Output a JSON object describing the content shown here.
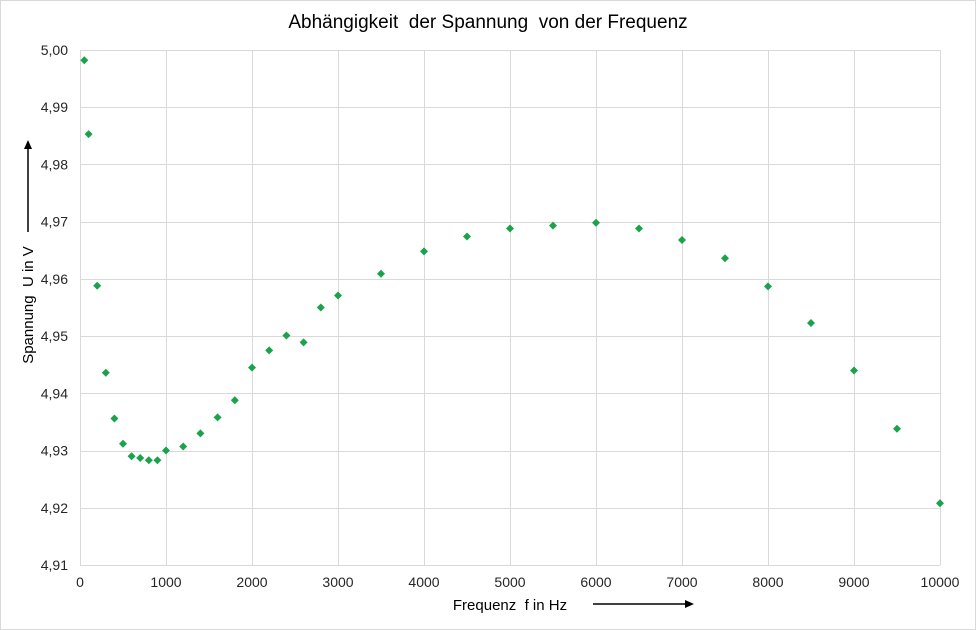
{
  "chart_data": {
    "type": "scatter",
    "title": "Abhängigkeit  der Spannung  von der Frequenz",
    "xlabel": "Frequenz  f in Hz",
    "ylabel": "Spannung  U in V",
    "xlim": [
      0,
      10000
    ],
    "ylim": [
      4.91,
      5.0
    ],
    "xticks": [
      0,
      1000,
      2000,
      3000,
      4000,
      5000,
      6000,
      7000,
      8000,
      9000,
      10000
    ],
    "xtick_labels": [
      "0",
      "1000",
      "2000",
      "3000",
      "4000",
      "5000",
      "6000",
      "7000",
      "8000",
      "9000",
      "10000"
    ],
    "yticks": [
      4.91,
      4.92,
      4.93,
      4.94,
      4.95,
      4.96,
      4.97,
      4.98,
      4.99,
      5.0
    ],
    "ytick_labels": [
      "4,91",
      "4,92",
      "4,93",
      "4,94",
      "4,95",
      "4,96",
      "4,97",
      "4,98",
      "4,99",
      "5,00"
    ],
    "grid": true,
    "legend": "none",
    "marker": "diamond",
    "color": "#1aa34a",
    "series": [
      {
        "x": [
          50,
          100,
          200,
          300,
          400,
          500,
          600,
          700,
          800,
          900,
          1000,
          1200,
          1400,
          1600,
          1800,
          2000,
          2200,
          2400,
          2600,
          2800,
          3000,
          3500,
          4000,
          4500,
          5000,
          5500,
          6000,
          6500,
          7000,
          7500,
          8000,
          8500,
          9000,
          9500,
          10000
        ],
        "y": [
          4.9982,
          4.9853,
          4.9588,
          4.9436,
          4.9356,
          4.9312,
          4.929,
          4.9287,
          4.9283,
          4.9283,
          4.93,
          4.9307,
          4.933,
          4.9358,
          4.9388,
          4.9445,
          4.9475,
          4.9501,
          4.9489,
          4.955,
          4.9571,
          4.9609,
          4.9648,
          4.9674,
          4.9688,
          4.9693,
          4.9698,
          4.9688,
          4.9668,
          4.9636,
          4.9587,
          4.9523,
          4.944,
          4.9338,
          4.9208
        ]
      }
    ]
  }
}
